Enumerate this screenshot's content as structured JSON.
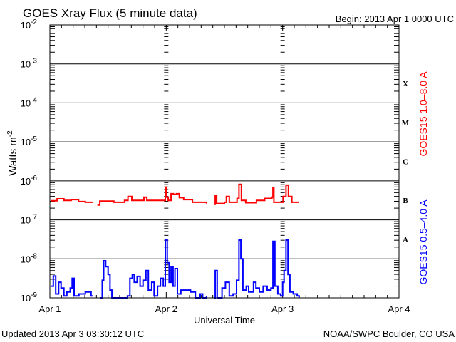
{
  "chart_data": {
    "type": "line",
    "title": "GOES Xray Flux (5 minute data)",
    "begin_label": "Begin:  2013 Apr 1 0000 UTC",
    "xlabel": "Universal Time",
    "ylabel": "Watts m",
    "ylabel_exp": "-2",
    "x_unit": "hours since 2013 Apr 1 0000 UTC",
    "xlim": [
      0,
      72
    ],
    "ylim_log10": [
      -9,
      -2
    ],
    "y_scale": "log",
    "x_ticks": [
      {
        "value": 0,
        "label": "Apr 1"
      },
      {
        "value": 24,
        "label": "Apr 2"
      },
      {
        "value": 48,
        "label": "Apr 3"
      },
      {
        "value": 72,
        "label": "Apr 4"
      }
    ],
    "y_ticks": [
      {
        "exp": -2,
        "base": "10",
        "sup": "-2"
      },
      {
        "exp": -3,
        "base": "10",
        "sup": "-3"
      },
      {
        "exp": -4,
        "base": "10",
        "sup": "-4"
      },
      {
        "exp": -5,
        "base": "10",
        "sup": "-5"
      },
      {
        "exp": -6,
        "base": "10",
        "sup": "-6"
      },
      {
        "exp": -7,
        "base": "10",
        "sup": "-7"
      },
      {
        "exp": -8,
        "base": "10",
        "sup": "-8"
      },
      {
        "exp": -9,
        "base": "10",
        "sup": "-9"
      }
    ],
    "flare_classes": [
      {
        "label": "X",
        "exp": -3.5
      },
      {
        "label": "M",
        "exp": -4.5
      },
      {
        "label": "C",
        "exp": -5.5
      },
      {
        "label": "B",
        "exp": -6.5
      },
      {
        "label": "A",
        "exp": -7.5
      }
    ],
    "series": [
      {
        "name": "GOES15 1.0–8.0 A",
        "color": "#ff0000",
        "points_log10": [
          [
            0.3,
            -6.51
          ],
          [
            1.5,
            -6.46
          ],
          [
            2.9,
            -6.5
          ],
          [
            4.4,
            -6.48
          ],
          [
            5.9,
            -6.53
          ],
          [
            7.3,
            -6.55
          ],
          [
            8.8,
            -6.55
          ],
          null,
          [
            9.8,
            -6.62
          ],
          [
            10.3,
            -6.52
          ],
          [
            13.2,
            -6.55
          ],
          [
            15.4,
            -6.5
          ],
          [
            16.1,
            -6.4
          ],
          [
            16.9,
            -6.5
          ],
          [
            19.1,
            -6.5
          ],
          [
            19.4,
            -6.42
          ],
          [
            20.0,
            -6.5
          ],
          [
            22.8,
            -6.5
          ],
          [
            23.5,
            -6.5
          ],
          [
            23.8,
            -6.16
          ],
          [
            24.1,
            -6.42
          ],
          [
            24.4,
            -6.5
          ],
          [
            25.0,
            -6.33
          ],
          [
            25.5,
            -6.35
          ],
          [
            26.1,
            -6.33
          ],
          [
            26.7,
            -6.43
          ],
          [
            27.6,
            -6.48
          ],
          [
            29.4,
            -6.55
          ],
          [
            32.3,
            -6.58
          ],
          null,
          [
            33.8,
            -6.6
          ],
          [
            34.1,
            -6.38
          ],
          [
            34.4,
            -6.58
          ],
          [
            36.0,
            -6.55
          ],
          [
            36.4,
            -6.4
          ],
          [
            37.0,
            -6.55
          ],
          [
            38.6,
            -6.45
          ],
          [
            39.0,
            -6.09
          ],
          [
            39.5,
            -6.5
          ],
          [
            40.4,
            -6.56
          ],
          [
            42.6,
            -6.5
          ],
          [
            44.3,
            -6.45
          ],
          [
            45.8,
            -6.42
          ],
          [
            46.0,
            -6.18
          ],
          [
            46.2,
            -6.55
          ],
          [
            47.7,
            -6.55
          ],
          [
            48.1,
            -6.4
          ],
          [
            48.7,
            -6.11
          ],
          [
            49.2,
            -6.4
          ],
          [
            49.9,
            -6.55
          ],
          [
            51.4,
            -6.55
          ]
        ]
      },
      {
        "name": "GOES15 0.5–4.0 A",
        "color": "#0000ff",
        "points_log10": [
          [
            0.2,
            -8.7
          ],
          [
            0.7,
            -8.44
          ],
          [
            1.2,
            -8.9
          ],
          [
            1.8,
            -8.6
          ],
          [
            2.3,
            -8.75
          ],
          [
            2.9,
            -8.95
          ],
          [
            3.5,
            -8.85
          ],
          [
            4.2,
            -8.75
          ],
          [
            4.6,
            -8.5
          ],
          [
            5.0,
            -8.95
          ],
          [
            6.0,
            -8.9
          ],
          [
            7.3,
            -8.85
          ],
          [
            8.5,
            -8.95
          ],
          [
            8.8,
            -8.95
          ],
          null,
          [
            10.3,
            -9.0
          ],
          [
            10.8,
            -8.55
          ],
          [
            11.1,
            -8.05
          ],
          [
            11.5,
            -8.2
          ],
          [
            12.0,
            -8.4
          ],
          [
            12.4,
            -8.8
          ],
          [
            12.8,
            -9.0
          ],
          [
            16.0,
            -8.95
          ],
          [
            16.5,
            -8.5
          ],
          [
            17.0,
            -8.4
          ],
          [
            17.4,
            -8.6
          ],
          [
            18.0,
            -8.45
          ],
          [
            18.6,
            -8.7
          ],
          [
            19.2,
            -8.55
          ],
          [
            19.8,
            -8.3
          ],
          [
            20.3,
            -8.8
          ],
          [
            21.0,
            -8.6
          ],
          [
            21.5,
            -8.95
          ],
          [
            22.2,
            -8.7
          ],
          [
            22.8,
            -8.5
          ],
          [
            23.4,
            -8.7
          ],
          [
            23.8,
            -7.52
          ],
          [
            24.2,
            -8.1
          ],
          [
            24.6,
            -8.6
          ],
          [
            25.0,
            -8.2
          ],
          [
            25.4,
            -8.7
          ],
          [
            25.8,
            -8.25
          ],
          [
            26.3,
            -8.9
          ],
          [
            27.0,
            -8.8
          ],
          [
            28.0,
            -8.8
          ],
          [
            29.0,
            -8.85
          ],
          [
            30.0,
            -9.0
          ],
          [
            31.0,
            -8.9
          ],
          [
            31.5,
            -9.0
          ],
          [
            32.3,
            -8.95
          ],
          null,
          [
            33.8,
            -9.0
          ],
          [
            34.1,
            -8.3
          ],
          [
            34.5,
            -9.0
          ],
          [
            35.5,
            -8.75
          ],
          [
            36.2,
            -8.6
          ],
          [
            37.0,
            -8.95
          ],
          [
            37.8,
            -8.9
          ],
          [
            38.5,
            -8.55
          ],
          [
            39.0,
            -7.52
          ],
          [
            39.4,
            -8.0
          ],
          [
            39.8,
            -8.8
          ],
          [
            40.5,
            -8.7
          ],
          [
            41.0,
            -8.85
          ],
          [
            42.0,
            -8.6
          ],
          [
            42.5,
            -8.75
          ],
          [
            43.2,
            -8.85
          ],
          [
            44.0,
            -8.7
          ],
          [
            44.8,
            -8.8
          ],
          [
            45.6,
            -8.75
          ],
          [
            46.0,
            -7.55
          ],
          [
            46.4,
            -8.7
          ],
          [
            47.0,
            -8.9
          ],
          [
            47.6,
            -8.95
          ],
          [
            48.0,
            -8.6
          ],
          [
            48.3,
            -8.3
          ],
          [
            48.7,
            -7.52
          ],
          [
            49.1,
            -8.4
          ],
          [
            49.5,
            -8.85
          ],
          [
            50.2,
            -8.9
          ],
          [
            51.0,
            -8.95
          ],
          [
            51.4,
            -9.0
          ]
        ]
      }
    ],
    "grid": "horizontal lines at each decade"
  },
  "footer": {
    "updated": "Updated 2013 Apr  3 03:30:12 UTC",
    "credit": "NOAA/SWPC Boulder, CO USA"
  }
}
